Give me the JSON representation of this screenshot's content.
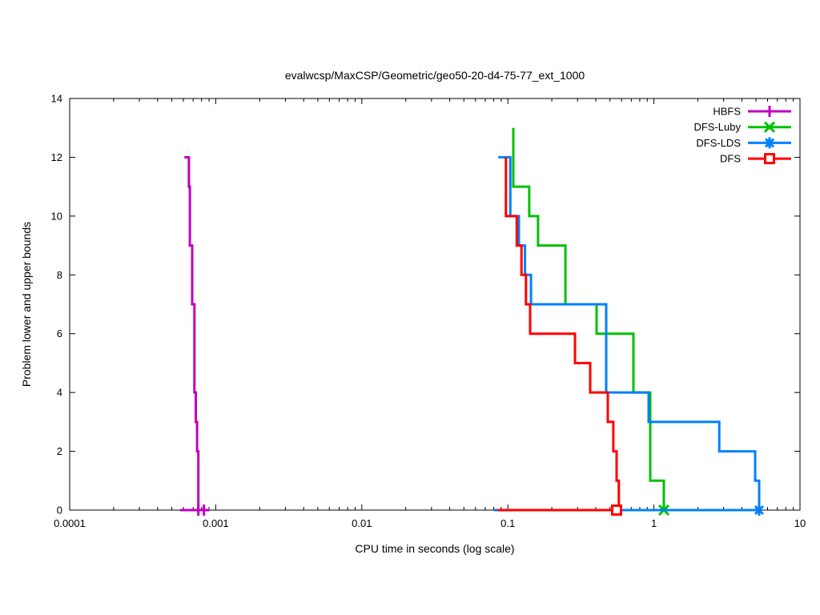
{
  "chart_data": {
    "type": "line",
    "title": "evalwcsp/MaxCSP/Geometric/geo50-20-d4-75-77_ext_1000",
    "xlabel": "CPU time in seconds (log scale)",
    "ylabel": "Problem lower and upper bounds",
    "x_scale": "log",
    "xlim": [
      0.0001,
      10
    ],
    "ylim": [
      0,
      14
    ],
    "grid": false,
    "legend_position": "top-right-inside",
    "x_ticks": [
      {
        "v": 0.0001,
        "label": "0.0001"
      },
      {
        "v": 0.001,
        "label": "0.001"
      },
      {
        "v": 0.01,
        "label": "0.01"
      },
      {
        "v": 0.1,
        "label": "0.1"
      },
      {
        "v": 1,
        "label": "1"
      },
      {
        "v": 10,
        "label": "10"
      }
    ],
    "y_ticks": [
      {
        "v": 0,
        "label": "0"
      },
      {
        "v": 2,
        "label": "2"
      },
      {
        "v": 4,
        "label": "4"
      },
      {
        "v": 6,
        "label": "6"
      },
      {
        "v": 8,
        "label": "8"
      },
      {
        "v": 10,
        "label": "10"
      },
      {
        "v": 12,
        "label": "12"
      },
      {
        "v": 14,
        "label": "14"
      }
    ],
    "series": [
      {
        "name": "HBFS",
        "color": "#C000C0",
        "marker": "plus",
        "upper_points": [
          [
            0.00061,
            12
          ],
          [
            0.000655,
            12
          ],
          [
            0.000655,
            11
          ],
          [
            0.000665,
            11
          ],
          [
            0.000665,
            9
          ],
          [
            0.00069,
            9
          ],
          [
            0.00069,
            7
          ],
          [
            0.000715,
            7
          ],
          [
            0.000715,
            4
          ],
          [
            0.00073,
            4
          ],
          [
            0.00073,
            3
          ],
          [
            0.000745,
            3
          ],
          [
            0.000745,
            2
          ],
          [
            0.00076,
            2
          ],
          [
            0.00076,
            0
          ]
        ],
        "lower_points": [
          [
            0.00057,
            0
          ],
          [
            0.00087,
            0
          ]
        ],
        "marker_points": [
          [
            0.00076,
            0
          ],
          [
            0.00083,
            0
          ]
        ]
      },
      {
        "name": "DFS-Luby",
        "color": "#00C000",
        "marker": "x",
        "upper_points": [
          [
            0.109,
            13
          ],
          [
            0.109,
            11
          ],
          [
            0.14,
            11
          ],
          [
            0.14,
            10
          ],
          [
            0.161,
            10
          ],
          [
            0.161,
            9
          ],
          [
            0.248,
            9
          ],
          [
            0.248,
            7
          ],
          [
            0.405,
            7
          ],
          [
            0.405,
            6
          ],
          [
            0.724,
            6
          ],
          [
            0.724,
            4
          ],
          [
            0.944,
            4
          ],
          [
            0.944,
            1
          ],
          [
            1.17,
            1
          ],
          [
            1.17,
            0
          ]
        ],
        "lower_points": [
          [
            0.08,
            0
          ],
          [
            1.17,
            0
          ]
        ],
        "marker_points": [
          [
            1.17,
            0
          ]
        ]
      },
      {
        "name": "DFS-LDS",
        "color": "#0080FF",
        "marker": "asterisk",
        "upper_points": [
          [
            0.086,
            12
          ],
          [
            0.104,
            12
          ],
          [
            0.104,
            10
          ],
          [
            0.119,
            10
          ],
          [
            0.119,
            9
          ],
          [
            0.131,
            9
          ],
          [
            0.131,
            8
          ],
          [
            0.144,
            8
          ],
          [
            0.144,
            7
          ],
          [
            0.471,
            7
          ],
          [
            0.471,
            4
          ],
          [
            0.92,
            4
          ],
          [
            0.92,
            3
          ],
          [
            2.8,
            3
          ],
          [
            2.8,
            2
          ],
          [
            4.93,
            2
          ],
          [
            4.93,
            1
          ],
          [
            5.25,
            1
          ],
          [
            5.25,
            0
          ]
        ],
        "lower_points": [
          [
            0.08,
            0
          ],
          [
            5.25,
            0
          ]
        ],
        "marker_points": [
          [
            5.25,
            0
          ]
        ]
      },
      {
        "name": "DFS",
        "color": "#FF0000",
        "marker": "square",
        "upper_points": [
          [
            0.097,
            12
          ],
          [
            0.097,
            10
          ],
          [
            0.115,
            10
          ],
          [
            0.115,
            9
          ],
          [
            0.124,
            9
          ],
          [
            0.124,
            8
          ],
          [
            0.133,
            8
          ],
          [
            0.133,
            7
          ],
          [
            0.142,
            7
          ],
          [
            0.142,
            6
          ],
          [
            0.288,
            6
          ],
          [
            0.288,
            5
          ],
          [
            0.366,
            5
          ],
          [
            0.366,
            4
          ],
          [
            0.483,
            4
          ],
          [
            0.483,
            3
          ],
          [
            0.527,
            3
          ],
          [
            0.527,
            2
          ],
          [
            0.555,
            2
          ],
          [
            0.555,
            1
          ],
          [
            0.575,
            1
          ],
          [
            0.575,
            0
          ]
        ],
        "lower_points": [
          [
            0.085,
            0
          ],
          [
            0.575,
            0
          ]
        ],
        "marker_points": [
          [
            0.555,
            0
          ]
        ]
      }
    ]
  }
}
